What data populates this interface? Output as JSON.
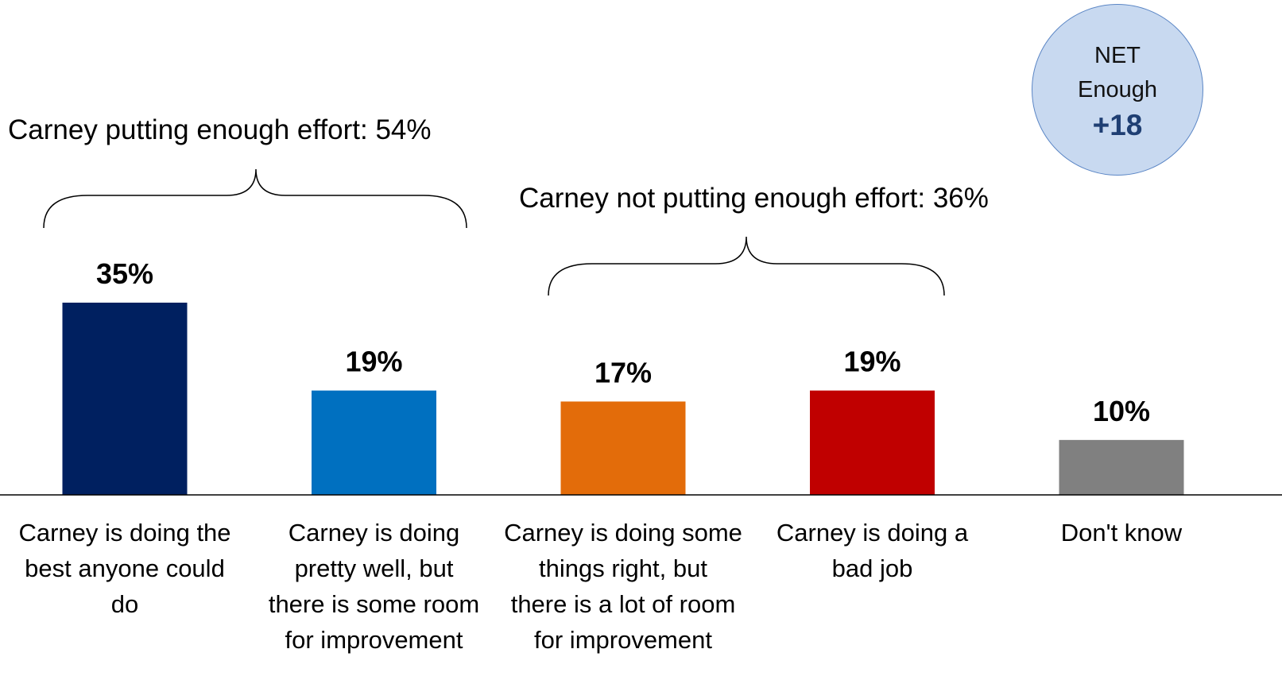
{
  "chart_data": {
    "type": "bar",
    "categories": [
      "Carney is doing the best anyone could do",
      "Carney is doing pretty well, but there is some room for improvement",
      "Carney is doing some things right, but there is a lot of room for improvement",
      "Carney is doing a bad job",
      "Don't know"
    ],
    "category_lines": [
      [
        "Carney is doing the",
        "best anyone could",
        "do"
      ],
      [
        "Carney is doing",
        "pretty well, but",
        "there is some room",
        "for improvement"
      ],
      [
        "Carney is doing some",
        "things right, but",
        "there is a lot of room",
        "for improvement"
      ],
      [
        "Carney is doing a",
        "bad job"
      ],
      [
        "Don't know"
      ]
    ],
    "values": [
      35,
      19,
      17,
      19,
      10
    ],
    "value_labels": [
      "35%",
      "19%",
      "17%",
      "19%",
      "10%"
    ],
    "colors": [
      "#002060",
      "#0070c0",
      "#e36c0a",
      "#c00000",
      "#808080"
    ],
    "ylim": [
      0,
      40
    ],
    "grid": false,
    "legend": "none",
    "annotations": {
      "enough": {
        "label": "Carney putting enough effort: 54%",
        "spans": [
          0,
          1
        ]
      },
      "not_enough": {
        "label": "Carney not putting enough effort: 36%",
        "spans": [
          2,
          3
        ]
      }
    },
    "net": {
      "line1": "NET",
      "line2": "Enough",
      "value": "+18"
    }
  }
}
